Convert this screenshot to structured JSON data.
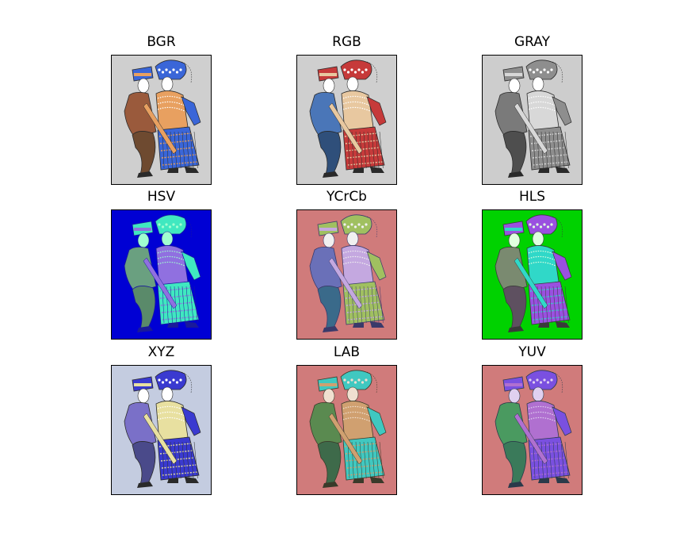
{
  "figure": {
    "panels": [
      {
        "id": "bgr",
        "title": "BGR",
        "colors": {
          "bg": "#cfcfcf",
          "a": "#9a5a3c",
          "b": "#6e4a30",
          "c": "#3a66d8",
          "d": "#e8a060",
          "e": "#2a2a2a",
          "f": "#ffffff"
        }
      },
      {
        "id": "rgb",
        "title": "RGB",
        "colors": {
          "bg": "#cfcfcf",
          "a": "#4a76b8",
          "b": "#2f4f7a",
          "c": "#c63a3a",
          "d": "#e8c8a0",
          "e": "#2a2a2a",
          "f": "#ffffff"
        }
      },
      {
        "id": "gray",
        "title": "GRAY",
        "colors": {
          "bg": "#cdcdcd",
          "a": "#7a7a7a",
          "b": "#4e4e4e",
          "c": "#8e8e8e",
          "d": "#d8d8d8",
          "e": "#2a2a2a",
          "f": "#ffffff"
        }
      },
      {
        "id": "hsv",
        "title": "HSV",
        "colors": {
          "bg": "#0000d4",
          "a": "#6aa080",
          "b": "#5a8a6a",
          "c": "#40e8c0",
          "d": "#9070e0",
          "e": "#1a1a9a",
          "f": "#a0ffd0"
        }
      },
      {
        "id": "ycrcb",
        "title": "YCrCb",
        "colors": {
          "bg": "#d07b7b",
          "a": "#6a70b8",
          "b": "#3a6a8a",
          "c": "#a0c060",
          "d": "#c4a8e0",
          "e": "#3a3a6a",
          "f": "#f0f0f0"
        }
      },
      {
        "id": "hls",
        "title": "HLS",
        "colors": {
          "bg": "#00d200",
          "a": "#7a8a70",
          "b": "#5e5060",
          "c": "#9a50e0",
          "d": "#30d8c8",
          "e": "#3a3a3a",
          "f": "#e0ffe0"
        }
      },
      {
        "id": "xyz",
        "title": "XYZ",
        "colors": {
          "bg": "#c4cce0",
          "a": "#7a70c8",
          "b": "#4a4a8a",
          "c": "#3a3ad0",
          "d": "#e8e0a0",
          "e": "#2a2a2a",
          "f": "#ffffff"
        }
      },
      {
        "id": "lab",
        "title": "LAB",
        "colors": {
          "bg": "#d07b7b",
          "a": "#5a8a50",
          "b": "#3e6a4a",
          "c": "#40c8c0",
          "d": "#d0a070",
          "e": "#3a3a2a",
          "f": "#f0e0d0"
        }
      },
      {
        "id": "yuv",
        "title": "YUV",
        "colors": {
          "bg": "#d07b7b",
          "a": "#4a9a60",
          "b": "#3a7a5a",
          "c": "#7a50e0",
          "d": "#b070d0",
          "e": "#2a3a4a",
          "f": "#e0d0f0"
        }
      }
    ]
  }
}
